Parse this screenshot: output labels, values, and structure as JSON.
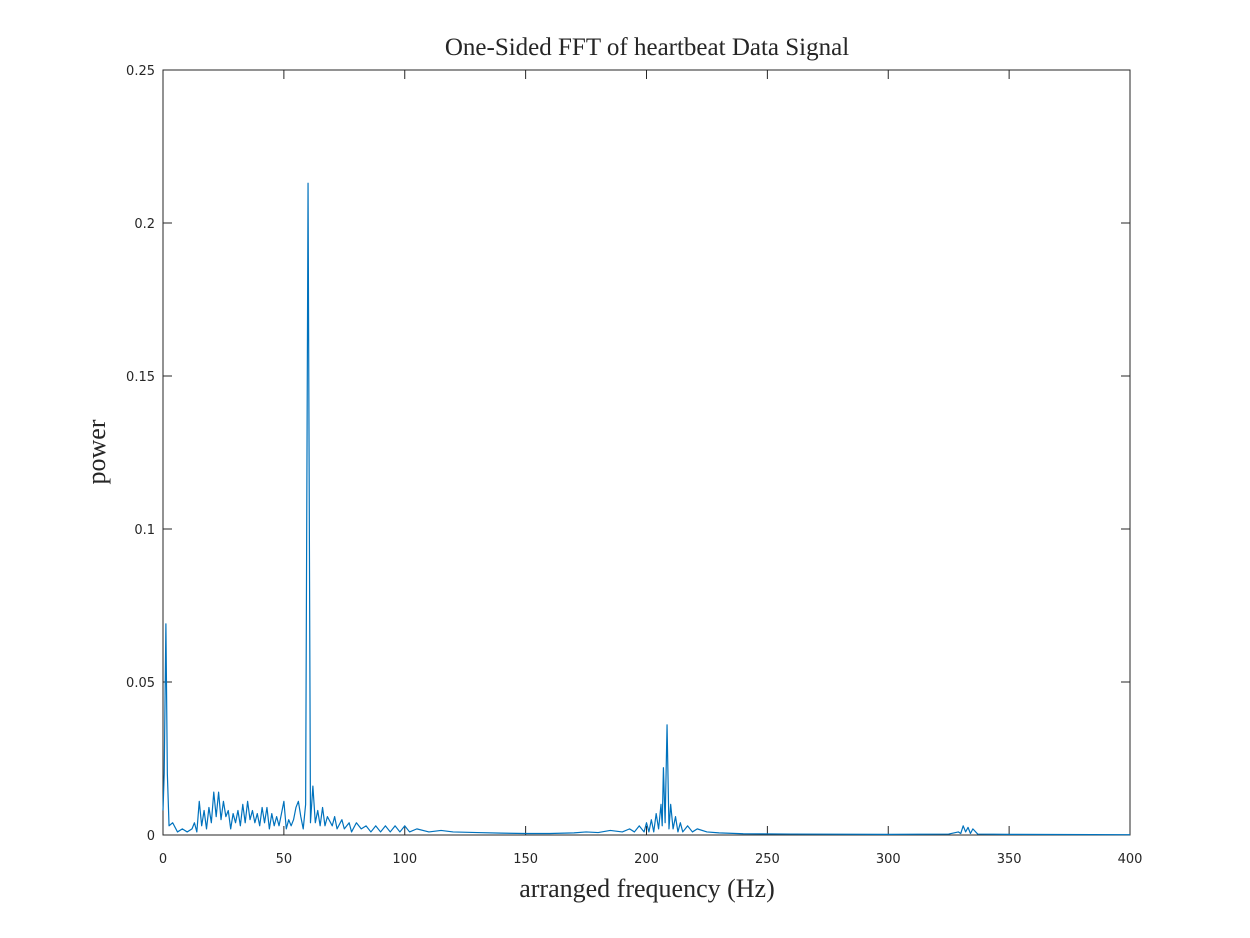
{
  "chart_data": {
    "type": "line",
    "title": "One-Sided FFT of heartbeat Data Signal",
    "x_label": "arranged frequency (Hz)",
    "y_label": "power",
    "xlim": [
      0,
      400
    ],
    "xticks": [
      0,
      50,
      100,
      150,
      200,
      250,
      300,
      350,
      400
    ],
    "ylim": [
      0,
      0.25
    ],
    "yticks": [
      0,
      0.05,
      0.1,
      0.15,
      0.2,
      0.25
    ],
    "grid": false,
    "series": [
      {
        "color": "#0072bd",
        "x": [
          0,
          0.5,
          1.2,
          1.8,
          2.5,
          4,
          6,
          8,
          10,
          12,
          13,
          14,
          15,
          16,
          17,
          18,
          19,
          20,
          21,
          22,
          23,
          24,
          25,
          26,
          27,
          28,
          29,
          30,
          31,
          32,
          33,
          34,
          35,
          36,
          37,
          38,
          39,
          40,
          41,
          42,
          43,
          44,
          45,
          46,
          47,
          48,
          49,
          50,
          51,
          52,
          53,
          54,
          55,
          56,
          57,
          58,
          59,
          60,
          61,
          62,
          63,
          64,
          65,
          66,
          67,
          68,
          70,
          71,
          72,
          74,
          75,
          77,
          78,
          80,
          82,
          84,
          86,
          88,
          90,
          92,
          94,
          96,
          98,
          100,
          102,
          105,
          110,
          115,
          120,
          130,
          140,
          150,
          160,
          170,
          175,
          180,
          185,
          190,
          193,
          195,
          197,
          199,
          200,
          201,
          202,
          203,
          204,
          205,
          206,
          206.5,
          207,
          207.7,
          208.5,
          209.3,
          210,
          211,
          212,
          213,
          214,
          215,
          217,
          219,
          221,
          225,
          230,
          240,
          260,
          300,
          325,
          329,
          330,
          331,
          332,
          333,
          334,
          335,
          337,
          350,
          400
        ],
        "values": [
          0.008,
          0.02,
          0.069,
          0.02,
          0.003,
          0.004,
          0.001,
          0.002,
          0.001,
          0.002,
          0.004,
          0.001,
          0.011,
          0.003,
          0.008,
          0.002,
          0.009,
          0.004,
          0.014,
          0.006,
          0.014,
          0.005,
          0.011,
          0.006,
          0.008,
          0.002,
          0.007,
          0.004,
          0.008,
          0.003,
          0.01,
          0.004,
          0.011,
          0.005,
          0.008,
          0.004,
          0.007,
          0.003,
          0.009,
          0.004,
          0.009,
          0.002,
          0.007,
          0.003,
          0.006,
          0.003,
          0.007,
          0.011,
          0.002,
          0.005,
          0.003,
          0.005,
          0.009,
          0.011,
          0.006,
          0.002,
          0.01,
          0.213,
          0.004,
          0.016,
          0.004,
          0.008,
          0.003,
          0.009,
          0.003,
          0.006,
          0.003,
          0.006,
          0.002,
          0.005,
          0.002,
          0.004,
          0.001,
          0.004,
          0.002,
          0.003,
          0.001,
          0.003,
          0.001,
          0.003,
          0.001,
          0.003,
          0.001,
          0.003,
          0.001,
          0.002,
          0.001,
          0.0015,
          0.001,
          0.0008,
          0.0006,
          0.0005,
          0.0005,
          0.0007,
          0.001,
          0.0008,
          0.0015,
          0.001,
          0.002,
          0.001,
          0.003,
          0.001,
          0.004,
          0.001,
          0.005,
          0.001,
          0.007,
          0.002,
          0.01,
          0.003,
          0.022,
          0.004,
          0.036,
          0.002,
          0.01,
          0.002,
          0.006,
          0.001,
          0.004,
          0.001,
          0.003,
          0.001,
          0.002,
          0.001,
          0.0007,
          0.0004,
          0.0003,
          0.0002,
          0.0003,
          0.001,
          0.0005,
          0.003,
          0.001,
          0.0025,
          0.0005,
          0.002,
          0.0003,
          0.0002,
          0.0001
        ]
      }
    ]
  }
}
